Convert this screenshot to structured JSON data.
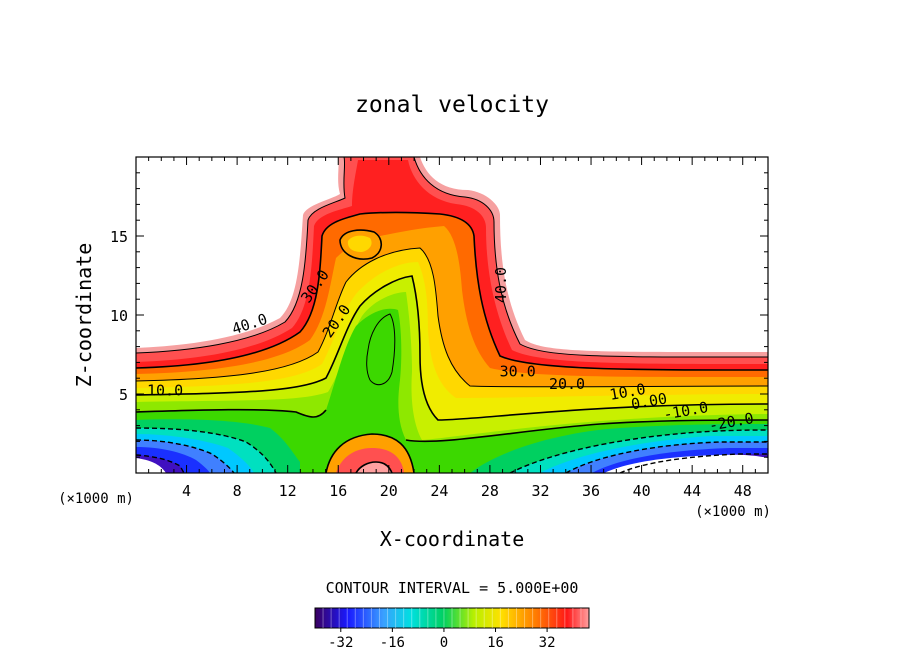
{
  "chart_data": {
    "type": "heatmap",
    "subtype": "filled-contour",
    "title": "zonal velocity",
    "xlabel": "X-coordinate",
    "ylabel": "Z-coordinate",
    "x_unit": "(×1000 m)",
    "xlim": [
      0,
      50
    ],
    "ylim": [
      0,
      20
    ],
    "x_ticks": [
      "4",
      "8",
      "12",
      "16",
      "20",
      "24",
      "28",
      "32",
      "36",
      "40",
      "44",
      "48"
    ],
    "y_ticks": [
      "5",
      "10",
      "15"
    ],
    "contour_labels": [
      {
        "text": "40.0",
        "x": 9.0,
        "y": 9.4,
        "angle": -18
      },
      {
        "text": "30.0",
        "x": 14.2,
        "y": 11.8,
        "angle": -55
      },
      {
        "text": "20.0",
        "x": 15.9,
        "y": 9.6,
        "angle": -55
      },
      {
        "text": "40.0",
        "x": 28.9,
        "y": 11.9,
        "angle": -90
      },
      {
        "text": "30.0",
        "x": 30.2,
        "y": 6.4,
        "angle": 0
      },
      {
        "text": "10.0",
        "x": 2.3,
        "y": 5.2,
        "angle": 0
      },
      {
        "text": "20.0",
        "x": 34.1,
        "y": 5.6,
        "angle": 0
      },
      {
        "text": "10.0",
        "x": 38.9,
        "y": 5.1,
        "angle": -10
      },
      {
        "text": "0.00",
        "x": 40.6,
        "y": 4.5,
        "angle": -10
      },
      {
        "text": "-10.0",
        "x": 43.5,
        "y": 3.9,
        "angle": -10
      },
      {
        "text": "-20.0",
        "x": 47.1,
        "y": 3.2,
        "angle": -10
      }
    ],
    "contour_interval_text": "CONTOUR INTERVAL = 5.000E+00",
    "colorbar": {
      "min": -40,
      "max": 45,
      "ticks": [
        "-32",
        "-16",
        "0",
        "16",
        "32"
      ],
      "tick_values": [
        -32,
        -16,
        0,
        16,
        32
      ]
    }
  }
}
